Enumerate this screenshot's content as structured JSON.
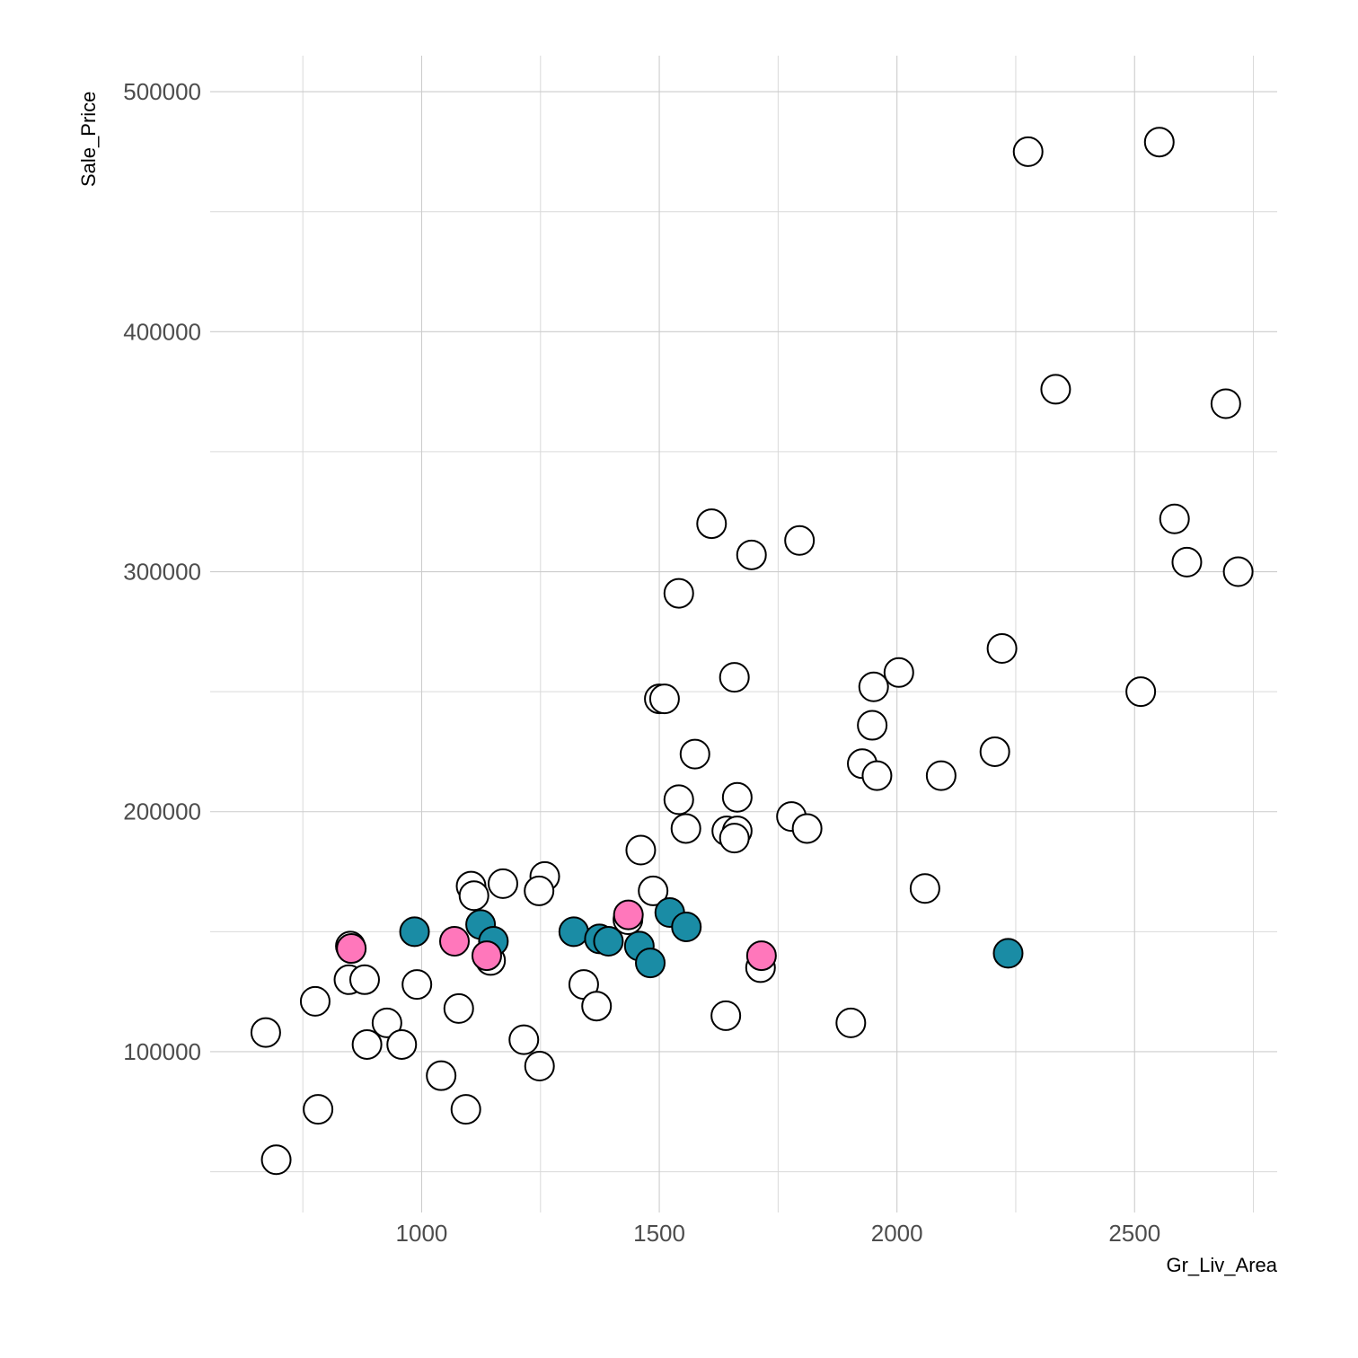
{
  "chart_data": {
    "type": "scatter",
    "xlabel": "Gr_Liv_Area",
    "ylabel": "Sale_Price",
    "xlim": [
      555,
      2800
    ],
    "ylim": [
      33000,
      515000
    ],
    "x_ticks": [
      1000,
      1500,
      2000,
      2500
    ],
    "x_tick_labels": [
      "1000",
      "1500",
      "2000",
      "2500"
    ],
    "x_minor_ticks": [
      750,
      1250,
      1750,
      2250,
      2750
    ],
    "y_ticks": [
      100000,
      200000,
      300000,
      400000,
      500000
    ],
    "y_tick_labels": [
      "100000",
      "200000",
      "300000",
      "400000",
      "500000"
    ],
    "y_minor_ticks": [
      50000,
      150000,
      250000,
      350000,
      450000
    ],
    "grid": true,
    "legend": "none",
    "colors": {
      "group_a": "#ffffff",
      "group_b": "#1a8ca5",
      "group_c": "#ff77bb",
      "stroke": "#000000"
    },
    "series": [
      {
        "color": "#ffffff",
        "points": [
          {
            "x": 2276,
            "y": 475000
          },
          {
            "x": 2552,
            "y": 479000
          },
          {
            "x": 2334,
            "y": 376000
          },
          {
            "x": 2692,
            "y": 370000
          },
          {
            "x": 2584,
            "y": 322000
          },
          {
            "x": 2610,
            "y": 304000
          },
          {
            "x": 2718,
            "y": 300000
          },
          {
            "x": 1610,
            "y": 320000
          },
          {
            "x": 1795,
            "y": 313000
          },
          {
            "x": 1694,
            "y": 307000
          },
          {
            "x": 1541,
            "y": 291000
          },
          {
            "x": 2221,
            "y": 268000
          },
          {
            "x": 2004,
            "y": 258000
          },
          {
            "x": 1658,
            "y": 256000
          },
          {
            "x": 1951,
            "y": 252000
          },
          {
            "x": 2513,
            "y": 250000
          },
          {
            "x": 1500,
            "y": 247000
          },
          {
            "x": 1511,
            "y": 247000
          },
          {
            "x": 1948,
            "y": 236000
          },
          {
            "x": 1575,
            "y": 224000
          },
          {
            "x": 2206,
            "y": 225000
          },
          {
            "x": 1927,
            "y": 220000
          },
          {
            "x": 1958,
            "y": 215000
          },
          {
            "x": 2093,
            "y": 215000
          },
          {
            "x": 1541,
            "y": 205000
          },
          {
            "x": 1664,
            "y": 206000
          },
          {
            "x": 1556,
            "y": 193000
          },
          {
            "x": 1642,
            "y": 192000
          },
          {
            "x": 1664,
            "y": 192000
          },
          {
            "x": 1658,
            "y": 189000
          },
          {
            "x": 1778,
            "y": 198000
          },
          {
            "x": 1811,
            "y": 193000
          },
          {
            "x": 1461,
            "y": 184000
          },
          {
            "x": 1259,
            "y": 173000
          },
          {
            "x": 1171,
            "y": 170000
          },
          {
            "x": 1247,
            "y": 167000
          },
          {
            "x": 1104,
            "y": 169000
          },
          {
            "x": 1110,
            "y": 165000
          },
          {
            "x": 1487,
            "y": 167000
          },
          {
            "x": 2059,
            "y": 168000
          },
          {
            "x": 1434,
            "y": 155000
          },
          {
            "x": 1713,
            "y": 135000
          },
          {
            "x": 1145,
            "y": 138000
          },
          {
            "x": 850,
            "y": 144000
          },
          {
            "x": 990,
            "y": 128000
          },
          {
            "x": 847,
            "y": 130000
          },
          {
            "x": 880,
            "y": 130000
          },
          {
            "x": 1341,
            "y": 128000
          },
          {
            "x": 1368,
            "y": 119000
          },
          {
            "x": 1078,
            "y": 118000
          },
          {
            "x": 776,
            "y": 121000
          },
          {
            "x": 927,
            "y": 112000
          },
          {
            "x": 1903,
            "y": 112000
          },
          {
            "x": 1640,
            "y": 115000
          },
          {
            "x": 672,
            "y": 108000
          },
          {
            "x": 885,
            "y": 103000
          },
          {
            "x": 958,
            "y": 103000
          },
          {
            "x": 1215,
            "y": 105000
          },
          {
            "x": 1041,
            "y": 90000
          },
          {
            "x": 1248,
            "y": 94000
          },
          {
            "x": 782,
            "y": 76000
          },
          {
            "x": 1093,
            "y": 76000
          },
          {
            "x": 694,
            "y": 55000
          }
        ]
      },
      {
        "color": "#1a8ca5",
        "points": [
          {
            "x": 985,
            "y": 150000
          },
          {
            "x": 1124,
            "y": 153000
          },
          {
            "x": 1151,
            "y": 146000
          },
          {
            "x": 1320,
            "y": 150000
          },
          {
            "x": 1374,
            "y": 147000
          },
          {
            "x": 1393,
            "y": 146000
          },
          {
            "x": 1458,
            "y": 144000
          },
          {
            "x": 1481,
            "y": 137000
          },
          {
            "x": 1522,
            "y": 158000
          },
          {
            "x": 1557,
            "y": 152000
          },
          {
            "x": 2234,
            "y": 141000
          }
        ]
      },
      {
        "color": "#ff77bb",
        "points": [
          {
            "x": 852,
            "y": 143000
          },
          {
            "x": 1069,
            "y": 146000
          },
          {
            "x": 1137,
            "y": 140000
          },
          {
            "x": 1435,
            "y": 157000
          },
          {
            "x": 1715,
            "y": 140000
          }
        ]
      }
    ]
  }
}
